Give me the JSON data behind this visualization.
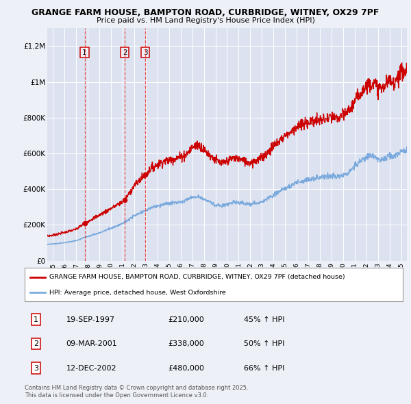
{
  "title_line1": "GRANGE FARM HOUSE, BAMPTON ROAD, CURBRIDGE, WITNEY, OX29 7PF",
  "title_line2": "Price paid vs. HM Land Registry's House Price Index (HPI)",
  "background_color": "#eef0f8",
  "plot_bg_color": "#dde2f0",
  "grid_color": "#ffffff",
  "sales": [
    {
      "date_year": 1997.72,
      "price": 210000,
      "label": "1"
    },
    {
      "date_year": 2001.18,
      "price": 338000,
      "label": "2"
    },
    {
      "date_year": 2002.95,
      "price": 480000,
      "label": "3"
    }
  ],
  "sale_dates_str": [
    "19-SEP-1997",
    "09-MAR-2001",
    "12-DEC-2002"
  ],
  "sale_prices_str": [
    "£210,000",
    "£338,000",
    "£480,000"
  ],
  "sale_hpi_str": [
    "45% ↑ HPI",
    "50% ↑ HPI",
    "66% ↑ HPI"
  ],
  "red_color": "#cc0000",
  "blue_color": "#7aaadd",
  "vline_color": "#ee3333",
  "ylim": [
    0,
    1300000
  ],
  "xlim_start": 1994.5,
  "xlim_end": 2025.5,
  "yticks": [
    0,
    200000,
    400000,
    600000,
    800000,
    1000000,
    1200000
  ],
  "ytick_labels": [
    "£0",
    "£200K",
    "£400K",
    "£600K",
    "£800K",
    "£1M",
    "£1.2M"
  ],
  "xticks": [
    1995,
    1996,
    1997,
    1998,
    1999,
    2000,
    2001,
    2002,
    2003,
    2004,
    2005,
    2006,
    2007,
    2008,
    2009,
    2010,
    2011,
    2012,
    2013,
    2014,
    2015,
    2016,
    2017,
    2018,
    2019,
    2020,
    2021,
    2022,
    2023,
    2024,
    2025
  ],
  "legend_label_red": "GRANGE FARM HOUSE, BAMPTON ROAD, CURBRIDGE, WITNEY, OX29 7PF (detached house)",
  "legend_label_blue": "HPI: Average price, detached house, West Oxfordshire",
  "footer": "Contains HM Land Registry data © Crown copyright and database right 2025.\nThis data is licensed under the Open Government Licence v3.0."
}
